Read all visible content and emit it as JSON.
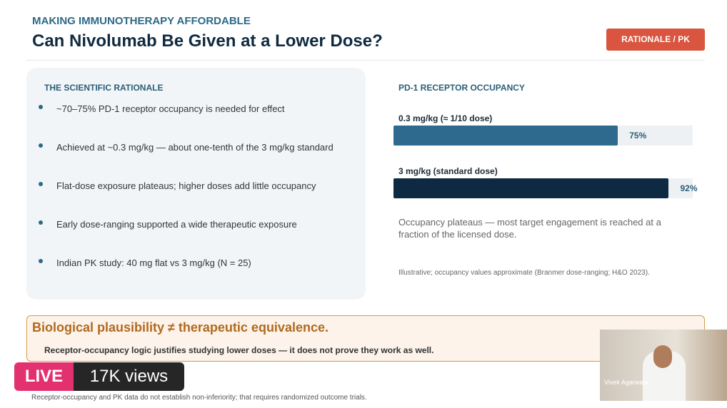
{
  "header": {
    "kicker": "MAKING IMMUNOTHERAPY AFFORDABLE",
    "title": "Can Nivolumab Be Given at a Lower Dose?",
    "badge": "RATIONALE / PK"
  },
  "rationale": {
    "heading": "THE SCIENTIFIC RATIONALE",
    "bullets": [
      "~70–75% PD-1 receptor occupancy is needed for effect",
      "Achieved at ~0.3 mg/kg — about one-tenth of the 3 mg/kg standard",
      "Flat-dose exposure plateaus; higher doses add little occupancy",
      "Early dose-ranging supported a wide therapeutic exposure",
      "Indian PK study: 40 mg flat vs 3 mg/kg (N = 25)"
    ]
  },
  "occupancy": {
    "heading": "PD-1 RECEPTOR OCCUPANCY",
    "xlim": [
      0,
      100
    ],
    "bars": [
      {
        "label": "0.3 mg/kg  (≈ 1/10 dose)",
        "value": 75,
        "value_label": "75%",
        "color": "#2d6a8e"
      },
      {
        "label": "3 mg/kg  (standard dose)",
        "value": 92,
        "value_label": "92%",
        "color": "#0e2a42"
      }
    ],
    "note": "Occupancy plateaus — most target engagement is reached at a fraction of the licensed dose.",
    "source": "Illustrative; occupancy values approximate (Branmer dose-ranging; H&O 2023)."
  },
  "callout": {
    "heading": "Biological plausibility ≠ therapeutic equivalence.",
    "text": "Receptor-occupancy logic justifies studying lower doses — it does not prove they work as well."
  },
  "footer": "Receptor-occupancy and PK data do not establish non-inferiority; that requires randomized outcome trials.",
  "stream": {
    "live": "LIVE",
    "views": "17K views",
    "speaker": "Vivek Agarwala"
  }
}
